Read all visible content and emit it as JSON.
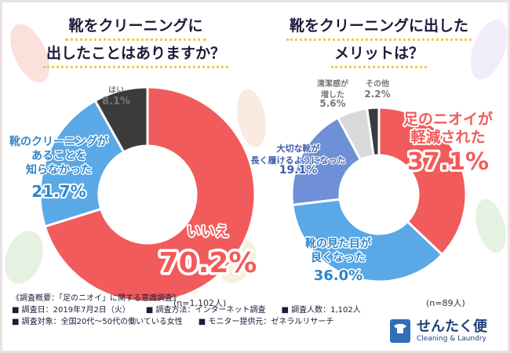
{
  "charts": [
    {
      "title_line1": "靴をクリーニングに",
      "title_line2": "出したことはありますか？",
      "sample_note": "(n=1,102人)"
    },
    {
      "title_line1": "靴をクリーニングに出した",
      "title_line2": "メリットは？",
      "sample_note": "(n=89人)"
    }
  ],
  "chart_data": [
    {
      "type": "pie",
      "title": "靴をクリーニングに出したことはありますか？",
      "slices": [
        {
          "label": "いいえ",
          "value": 70.2,
          "display": "70.2%",
          "color": "#f25b5b"
        },
        {
          "label": "靴のクリーニングがあることを知らなかった",
          "lines": [
            "靴のクリーニングが",
            "あることを",
            "知らなかった"
          ],
          "value": 21.7,
          "display": "21.7%",
          "color": "#5aa9e6"
        },
        {
          "label": "はい",
          "value": 8.1,
          "display": "8.1%",
          "color": "#3b3b3b"
        }
      ]
    },
    {
      "type": "pie",
      "title": "靴をクリーニングに出したメリットは？",
      "slices": [
        {
          "label": "足のニオイが軽減された",
          "lines": [
            "足のニオイが",
            "軽減された"
          ],
          "value": 37.1,
          "display": "37.1%",
          "color": "#f25b5b"
        },
        {
          "label": "靴の見た目が良くなった",
          "lines": [
            "靴の見た目が",
            "良くなった"
          ],
          "value": 36.0,
          "display": "36.0%",
          "color": "#5aa9e6"
        },
        {
          "label": "大切な靴が長く履けるようになった",
          "lines": [
            "大切な靴が",
            "長く履けるようになった"
          ],
          "value": 19.1,
          "display": "19.1%",
          "color": "#6f8fd6"
        },
        {
          "label": "清潔感が増した",
          "lines": [
            "清潔感が",
            "増した"
          ],
          "value": 5.6,
          "display": "5.6%",
          "color": "#d9d9d9"
        },
        {
          "label": "その他",
          "value": 2.2,
          "display": "2.2%",
          "color": "#3b3b3b"
        }
      ]
    }
  ],
  "footer": {
    "heading": "《調査概要：「足のニオイ」に関する意識調査》",
    "date": "■ 調査日：2019年7月2日（火）",
    "method": "■ 調査方法：インターネット調査",
    "count": "■ 調査人数：1,102人",
    "target": "■ 調査対象：全国20代〜50代の働いている女性",
    "provider": "■ モニター提供元：ゼネラルリサーチ"
  },
  "logo": {
    "name": "せんたく便",
    "tagline": "Cleaning & Laundry"
  }
}
